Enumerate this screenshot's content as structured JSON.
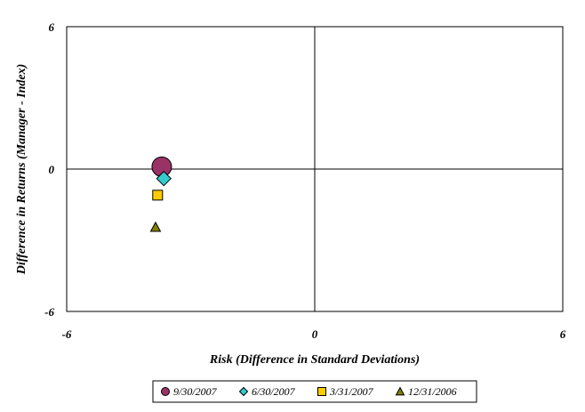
{
  "chart_data": {
    "type": "scatter",
    "title": "",
    "xlabel": "Risk (Difference in Standard Deviations)",
    "ylabel": "Difference in Returns (Manager - Index)",
    "xlim": [
      -6,
      6
    ],
    "ylim": [
      -6,
      6
    ],
    "x_ticks": [
      "-6",
      "0",
      "6"
    ],
    "y_ticks": [
      "6",
      "0",
      "-6"
    ],
    "grid": false,
    "quadrant_lines_at_zero": true,
    "legend_position": "bottom",
    "series": [
      {
        "name": "9/30/2007",
        "marker": "circle",
        "color": "#993366",
        "size": "large",
        "x": -3.7,
        "y": 0.1
      },
      {
        "name": "6/30/2007",
        "marker": "diamond",
        "color": "#33CCCC",
        "size": "medium",
        "x": -3.65,
        "y": -0.4
      },
      {
        "name": "3/31/2007",
        "marker": "square",
        "color": "#FFCC00",
        "size": "small",
        "x": -3.8,
        "y": -1.1
      },
      {
        "name": "12/31/2006",
        "marker": "triangle",
        "color": "#808000",
        "size": "small",
        "x": -3.85,
        "y": -2.45
      }
    ]
  }
}
